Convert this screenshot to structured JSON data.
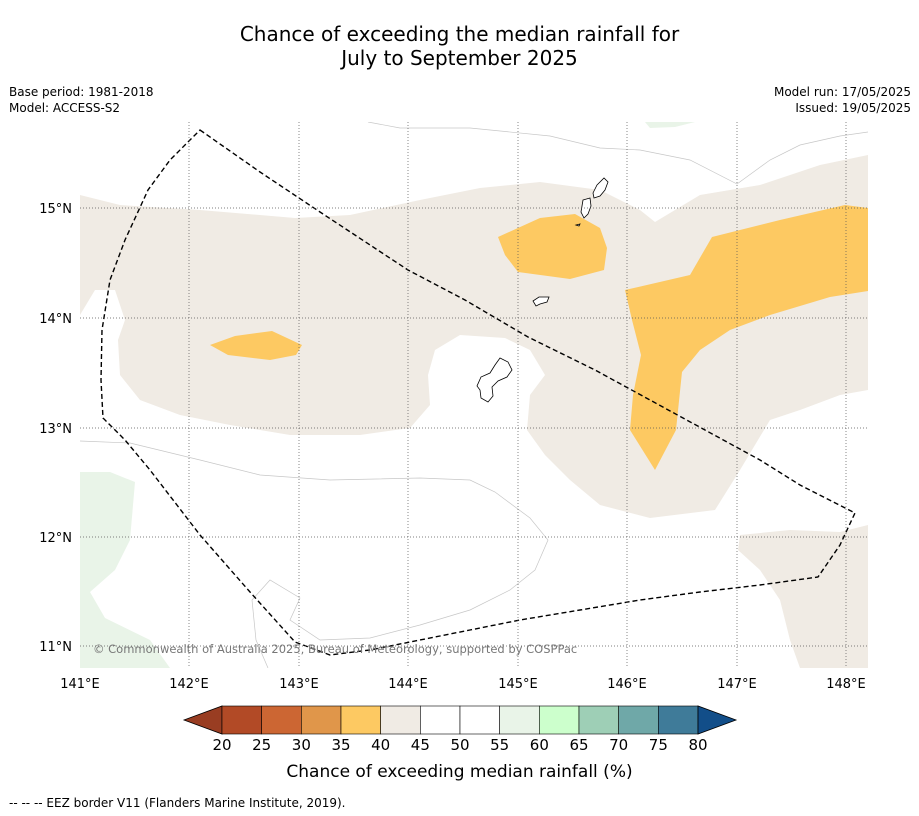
{
  "title": {
    "line1": "Chance of exceeding the median rainfall for",
    "line2": "July to September 2025"
  },
  "meta": {
    "base_period": "Base period: 1981-2018",
    "model": "Model: ACCESS-S2",
    "model_run": "Model run: 17/05/2025",
    "issued": "Issued: 19/05/2025"
  },
  "map": {
    "lon_ticks": [
      "141°E",
      "142°E",
      "143°E",
      "144°E",
      "145°E",
      "146°E",
      "147°E",
      "148°E"
    ],
    "lat_ticks": [
      "15°N",
      "14°N",
      "13°N",
      "12°N",
      "11°N"
    ],
    "copyright": "© Commonwealth of Australia 2025, Bureau of Meteorology, supported by COSPPac",
    "colors": {
      "c40_45": "#f0ebe4",
      "c35_40": "#fdc962",
      "c55_60": "#e9f4e8",
      "coast": "#000000",
      "grid": "#555555"
    }
  },
  "colorbar": {
    "ticks": [
      "20",
      "25",
      "30",
      "35",
      "40",
      "45",
      "50",
      "55",
      "60",
      "65",
      "70",
      "75",
      "80"
    ],
    "colors": [
      "#b24a26",
      "#cc6633",
      "#e0964a",
      "#fdc962",
      "#f0ebe4",
      "#ffffff",
      "#ffffff",
      "#e9f4e8",
      "#ccffcc",
      "#9ecfb6",
      "#6fa8a8",
      "#3f7b99"
    ],
    "under_color": "#993d22",
    "over_color": "#124e89",
    "label": "Chance of exceeding median rainfall (%)"
  },
  "footnote": "--  --  -- EEZ border V11 (Flanders Marine Institute, 2019)."
}
